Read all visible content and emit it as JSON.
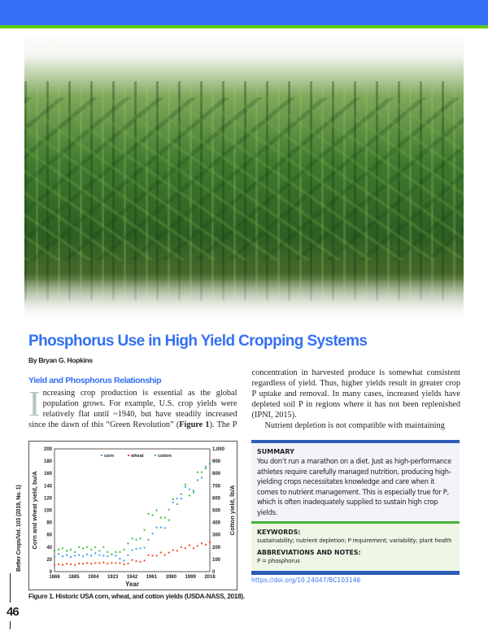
{
  "colors": {
    "header_blue": "#336ef7",
    "header_green": "#5fcb12",
    "accent_blue": "#3371f2",
    "corn": "#3ea0e8",
    "wheat": "#f04a1a",
    "cotton": "#3cc23a"
  },
  "photo": {
    "subject": "corn-field-photo"
  },
  "article": {
    "title": "Phosphorus Use in High Yield Cropping Systems",
    "byline": "By Bryan G. Hopkins",
    "subhead": "Yield and Phosphorus Relationship",
    "dropcap": "I",
    "para1_start": "ncreasing crop production is essential as the global population grows. For example, U.S. crop yields were relatively flat until ~1940, but have steadily increased since the dawn of this “Green Revolution” (",
    "para1_bold": "Figure 1",
    "para1_end": "). The P concentration in harvested produce is somewhat consistent regardless of yield. Thus, higher yields result in greater crop P uptake and removal. In many cases, increased yields have depleted soil P in regions where it has not been replenished (IPNI, 2015).",
    "para2": "Nutrient depletion is not compatible with maintaining"
  },
  "figure": {
    "caption": "Figure 1. Historic USA corn, wheat, and cotton yields (USDA-NASS, 2018)."
  },
  "chart_data": {
    "type": "scatter",
    "xlabel": "Year",
    "ylabel": "Corn and wheat yield, bu/A",
    "y2label": "Cotton yield, lb/A",
    "xlim": [
      1866,
      2018
    ],
    "ylim": [
      0,
      200
    ],
    "y2lim": [
      0,
      1000
    ],
    "x_ticks": [
      "1866",
      "1885",
      "1904",
      "1923",
      "1942",
      "1961",
      "1980",
      "1999",
      "2018"
    ],
    "y_ticks": [
      "0",
      "20",
      "40",
      "60",
      "80",
      "100",
      "120",
      "140",
      "160",
      "180",
      "200"
    ],
    "y2_ticks": [
      "0",
      "100",
      "200",
      "300",
      "400",
      "500",
      "600",
      "700",
      "800",
      "900",
      "1,000"
    ],
    "legend_position": "top-center",
    "grid": false,
    "x": [
      1866,
      1870,
      1874,
      1878,
      1882,
      1886,
      1890,
      1894,
      1898,
      1902,
      1906,
      1910,
      1914,
      1918,
      1922,
      1926,
      1930,
      1934,
      1938,
      1942,
      1946,
      1950,
      1954,
      1958,
      1962,
      1966,
      1970,
      1974,
      1978,
      1982,
      1986,
      1990,
      1994,
      1998,
      2002,
      2006,
      2010,
      2014,
      2018
    ],
    "series": [
      {
        "name": "corn",
        "axis": "left",
        "values": [
          24,
          29,
          25,
          27,
          24,
          26,
          27,
          25,
          28,
          26,
          30,
          27,
          26,
          25,
          28,
          26,
          21,
          18,
          27,
          35,
          37,
          38,
          39,
          52,
          62,
          72,
          72,
          71,
          101,
          113,
          119,
          119,
          138,
          134,
          129,
          149,
          153,
          171,
          176
        ]
      },
      {
        "name": "wheat",
        "axis": "left",
        "values": [
          11,
          12,
          11,
          13,
          12,
          11,
          13,
          13,
          14,
          13,
          14,
          14,
          15,
          13,
          14,
          14,
          14,
          12,
          13,
          19,
          17,
          16,
          18,
          27,
          26,
          26,
          31,
          27,
          31,
          35,
          34,
          40,
          38,
          43,
          38,
          42,
          46,
          44,
          48
        ]
      },
      {
        "name": "cotton",
        "axis": "right",
        "values": [
          170,
          180,
          190,
          170,
          180,
          160,
          200,
          190,
          200,
          180,
          200,
          170,
          200,
          160,
          140,
          160,
          160,
          180,
          230,
          270,
          260,
          270,
          340,
          470,
          460,
          500,
          440,
          440,
          420,
          590,
          550,
          630,
          710,
          620,
          660,
          810,
          810,
          840,
          880
        ]
      }
    ]
  },
  "summary": {
    "heading": "SUMMARY",
    "text": "You don’t run a marathon on a diet. Just as high-performance athletes require carefully managed nutrition, producing high-yielding crops necessitates knowledge and care when it comes to nutrient management. This is especially true for P, which is often inadequately supplied to sustain high crop yields.",
    "keywords_heading": "KEYWORDS:",
    "keywords": "sustainability; nutrient depletion; P requirement; variability; plant health",
    "abbrev_heading": "ABBREVIATIONS AND NOTES:",
    "abbrev": "P = phosphorus"
  },
  "doi": "https://doi.org/10.24047/BC103146",
  "sidebar": {
    "journal": "Better Crops/Vol. 103 (2019, No. 1)",
    "page": "46"
  }
}
